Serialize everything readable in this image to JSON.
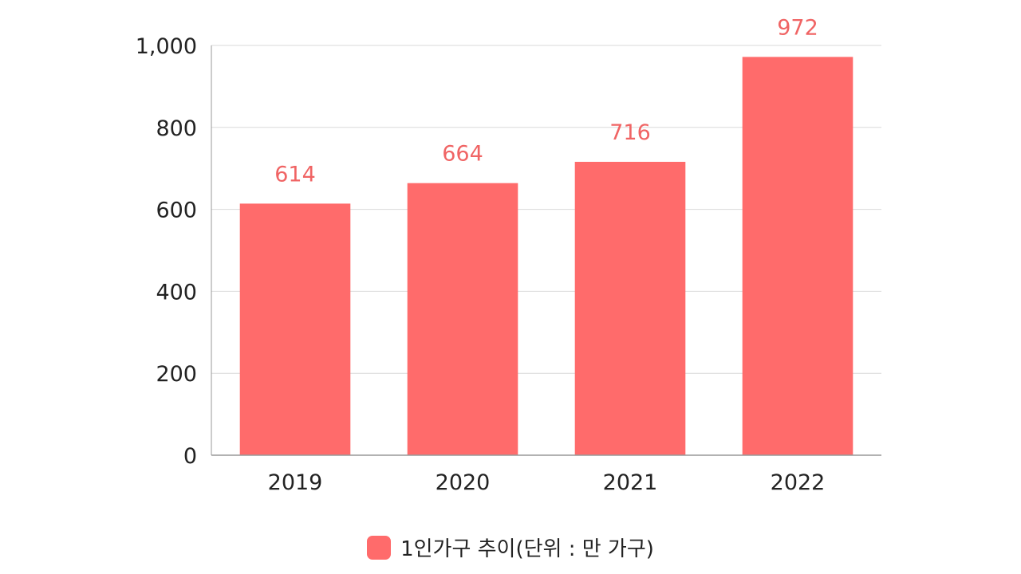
{
  "chart_data": {
    "type": "bar",
    "categories": [
      "2019",
      "2020",
      "2021",
      "2022"
    ],
    "series": [
      {
        "name": "1인가구 추이(단위 : 만 가구)",
        "values": [
          614,
          664,
          716,
          972
        ]
      }
    ],
    "data_labels": [
      "614",
      "664",
      "716",
      "972"
    ],
    "title": "",
    "xlabel": "",
    "ylabel": "",
    "ylim": [
      0,
      1000
    ],
    "yticks": [
      0,
      200,
      400,
      600,
      800,
      1000
    ],
    "ytick_labels": [
      "0",
      "200",
      "400",
      "600",
      "800",
      "1,000"
    ],
    "grid": true,
    "legend_position": "bottom-center"
  },
  "colors": {
    "bar": "#ff6b6b",
    "data_label": "#f06464",
    "grid": "#d9d9d9",
    "axis": "#999999"
  }
}
